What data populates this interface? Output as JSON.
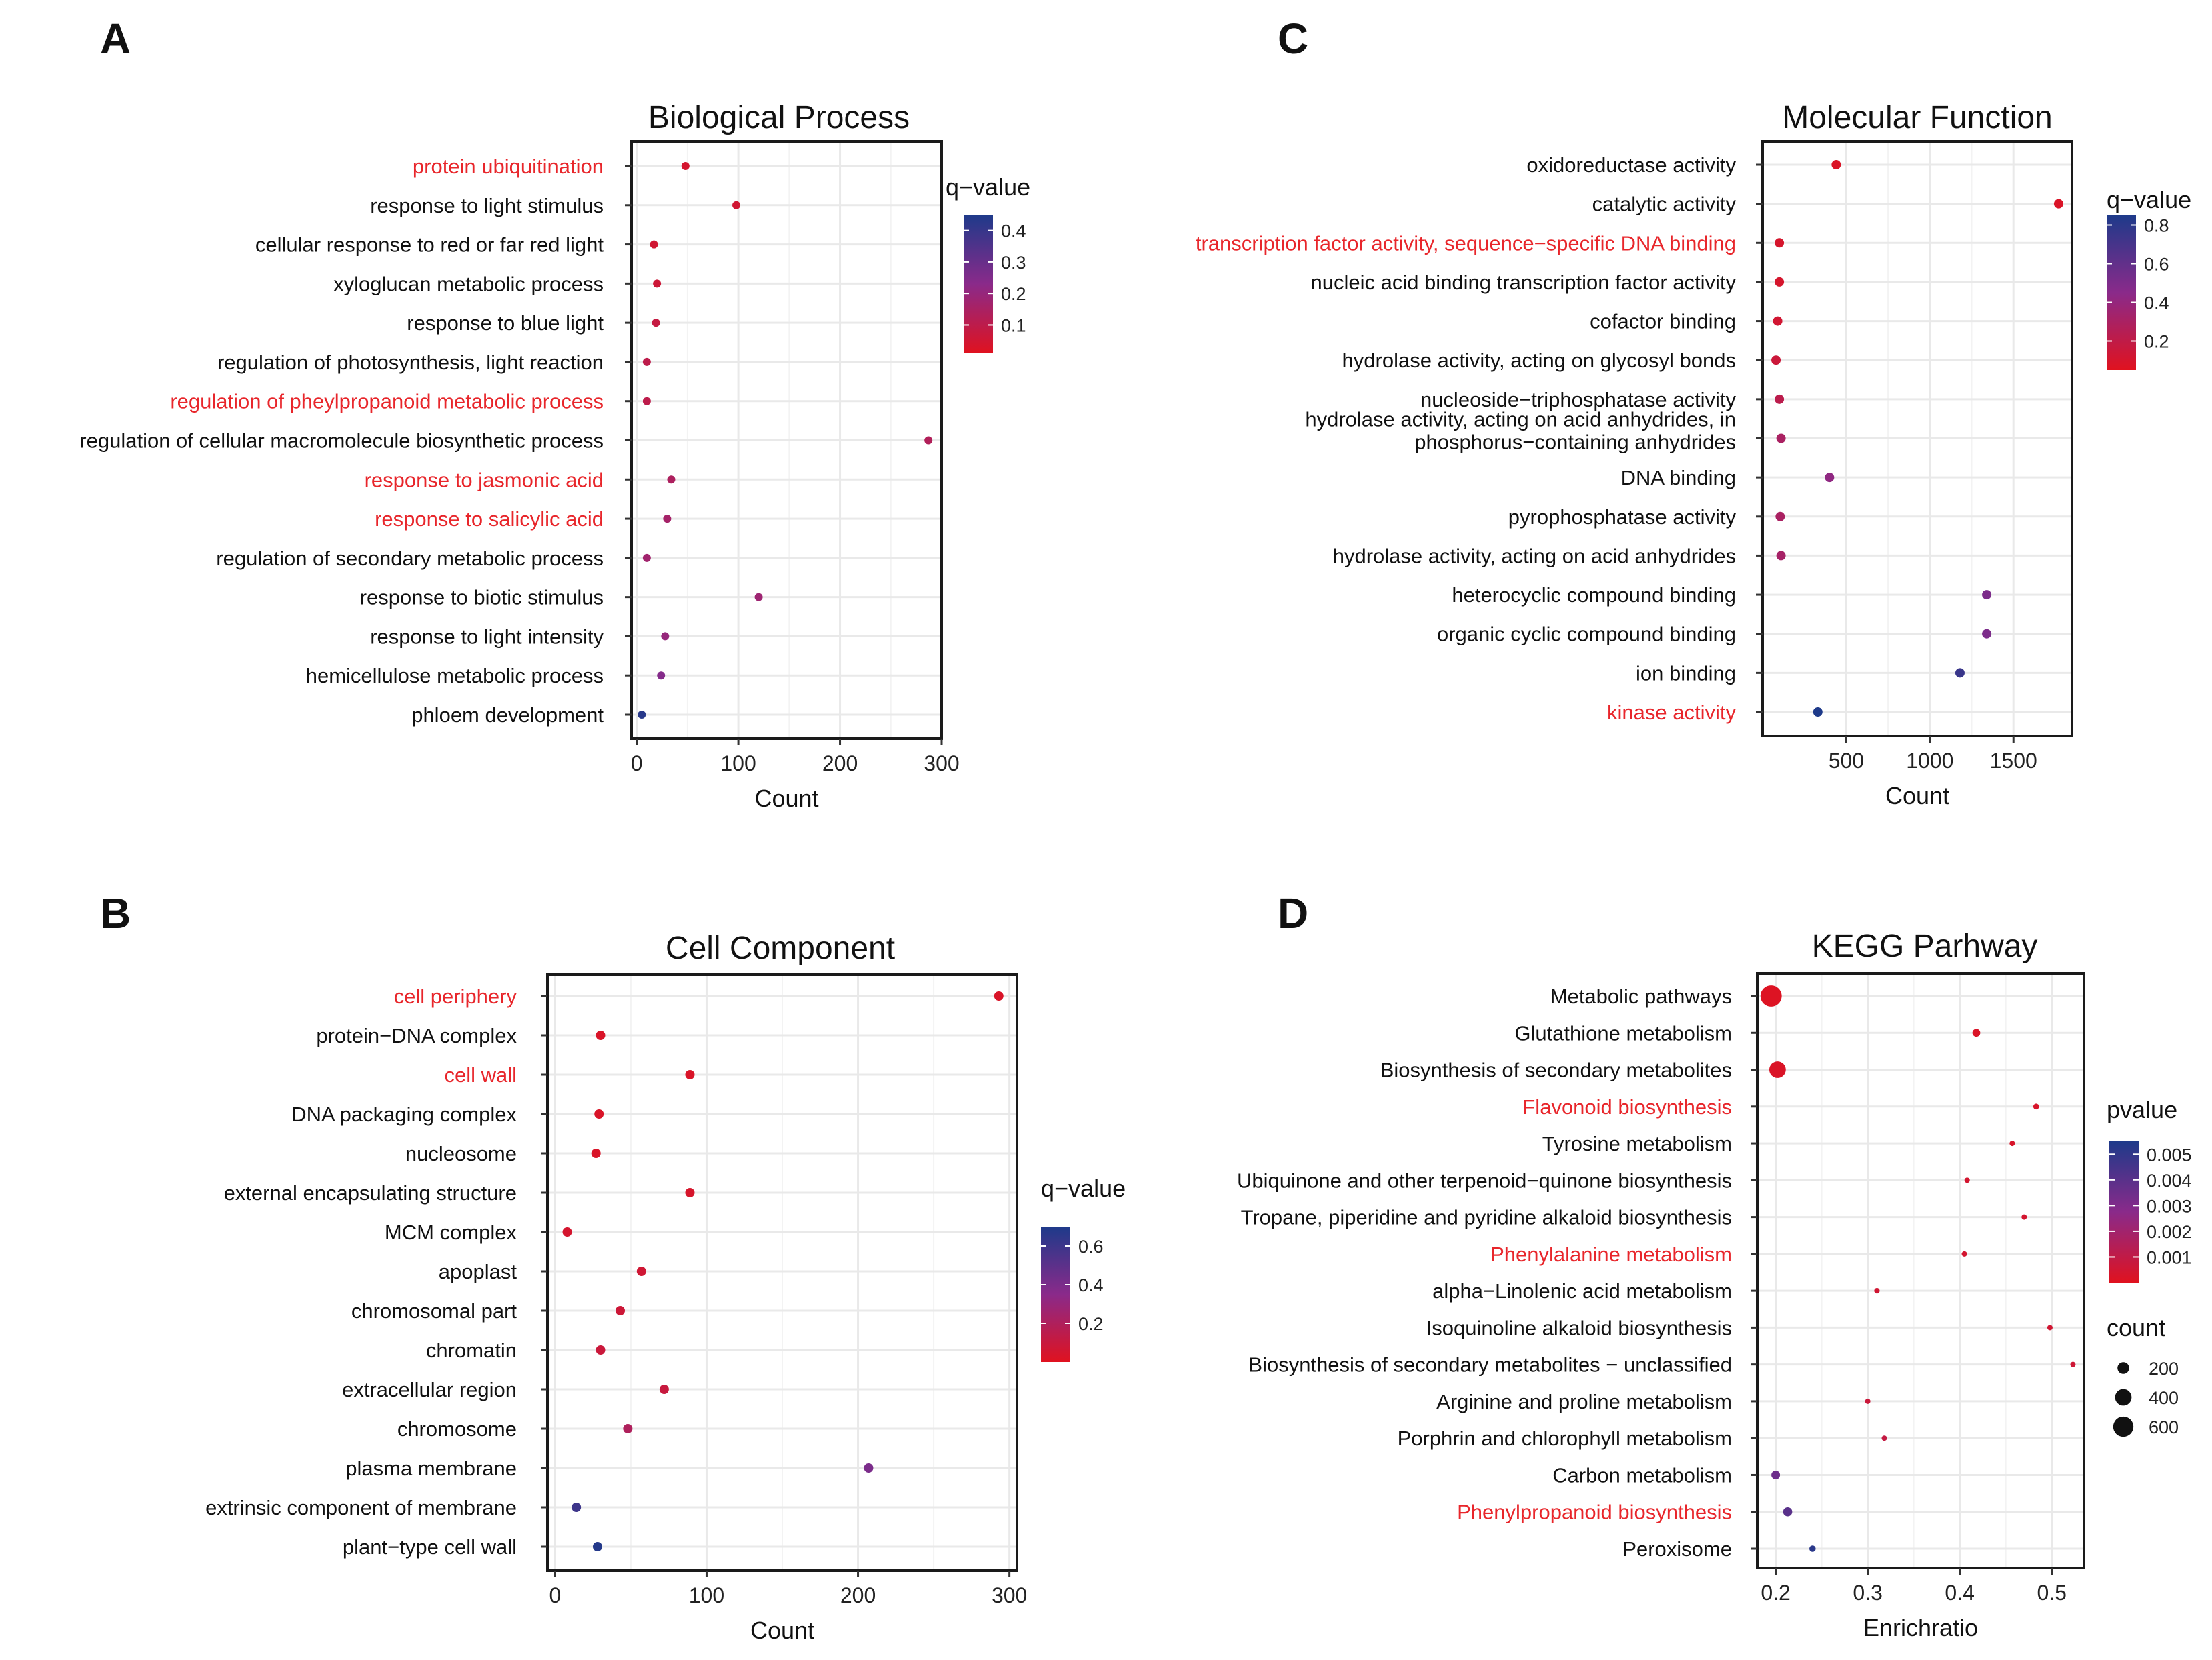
{
  "colors": {
    "high": "#1e3a8a",
    "mid": "#8a2a8a",
    "low": "#e0121f",
    "highlight": "#e8262b",
    "frame": "#1a1a1a",
    "grid": "#e9e9e9"
  },
  "chart_data": [
    {
      "id": "A",
      "panel": "A",
      "type": "scatter",
      "title": "Biological Process",
      "xlabel": "Count",
      "xlim": [
        -5,
        300
      ],
      "xticks": [
        0,
        100,
        200,
        300
      ],
      "legend": {
        "title": "q−value",
        "ticks": [
          "0.4",
          "0.3",
          "0.2",
          "0.1"
        ],
        "range": [
          0.01,
          0.45
        ],
        "placement": "right"
      },
      "categories": [
        {
          "label": "protein ubiquitination",
          "value": 48,
          "color_value": 0.04,
          "highlight": true
        },
        {
          "label": "response to light stimulus",
          "value": 98,
          "color_value": 0.05,
          "highlight": false
        },
        {
          "label": "cellular response to red or far red light",
          "value": 17,
          "color_value": 0.05,
          "highlight": false
        },
        {
          "label": "xyloglucan metabolic process",
          "value": 20,
          "color_value": 0.06,
          "highlight": false
        },
        {
          "label": "response to blue light",
          "value": 19,
          "color_value": 0.08,
          "highlight": false
        },
        {
          "label": "regulation of photosynthesis, light reaction",
          "value": 10,
          "color_value": 0.1,
          "highlight": false
        },
        {
          "label": "regulation of pheylpropanoid metabolic process",
          "value": 10,
          "color_value": 0.1,
          "highlight": true
        },
        {
          "label": "regulation of cellular macromolecule biosynthetic process",
          "value": 287,
          "color_value": 0.13,
          "highlight": false
        },
        {
          "label": "response to jasmonic acid",
          "value": 34,
          "color_value": 0.14,
          "highlight": true
        },
        {
          "label": "response to salicylic acid",
          "value": 30,
          "color_value": 0.16,
          "highlight": true
        },
        {
          "label": "regulation of secondary metabolic process",
          "value": 10,
          "color_value": 0.17,
          "highlight": false
        },
        {
          "label": "response to biotic stimulus",
          "value": 120,
          "color_value": 0.18,
          "highlight": false
        },
        {
          "label": "response to light intensity",
          "value": 28,
          "color_value": 0.2,
          "highlight": false
        },
        {
          "label": "hemicellulose metabolic process",
          "value": 24,
          "color_value": 0.24,
          "highlight": false
        },
        {
          "label": "phloem development",
          "value": 5,
          "color_value": 0.43,
          "highlight": false
        }
      ]
    },
    {
      "id": "B",
      "panel": "B",
      "type": "scatter",
      "title": "Cell Component",
      "xlabel": "Count",
      "xlim": [
        -5,
        305
      ],
      "xticks": [
        0,
        100,
        200,
        300
      ],
      "legend": {
        "title": "q−value",
        "ticks": [
          "0.6",
          "0.4",
          "0.2"
        ],
        "range": [
          0.0,
          0.7
        ],
        "placement": "right"
      },
      "categories": [
        {
          "label": "cell periphery",
          "value": 293,
          "color_value": 0.03,
          "highlight": true
        },
        {
          "label": "protein−DNA complex",
          "value": 30,
          "color_value": 0.03,
          "highlight": false
        },
        {
          "label": "cell wall",
          "value": 89,
          "color_value": 0.03,
          "highlight": true
        },
        {
          "label": "DNA packaging complex",
          "value": 29,
          "color_value": 0.03,
          "highlight": false
        },
        {
          "label": "nucleosome",
          "value": 27,
          "color_value": 0.03,
          "highlight": false
        },
        {
          "label": "external encapsulating structure",
          "value": 89,
          "color_value": 0.04,
          "highlight": false
        },
        {
          "label": "MCM complex",
          "value": 8,
          "color_value": 0.05,
          "highlight": false
        },
        {
          "label": "apoplast",
          "value": 57,
          "color_value": 0.07,
          "highlight": false
        },
        {
          "label": "chromosomal part",
          "value": 43,
          "color_value": 0.08,
          "highlight": false
        },
        {
          "label": "chromatin",
          "value": 30,
          "color_value": 0.09,
          "highlight": false
        },
        {
          "label": "extracellular region",
          "value": 72,
          "color_value": 0.1,
          "highlight": false
        },
        {
          "label": "chromosome",
          "value": 48,
          "color_value": 0.2,
          "highlight": false
        },
        {
          "label": "plasma membrane",
          "value": 207,
          "color_value": 0.4,
          "highlight": false
        },
        {
          "label": "extrinsic component of membrane",
          "value": 14,
          "color_value": 0.6,
          "highlight": false
        },
        {
          "label": "plant−type cell wall",
          "value": 28,
          "color_value": 0.68,
          "highlight": false
        }
      ]
    },
    {
      "id": "C",
      "panel": "C",
      "type": "scatter",
      "title": "Molecular Function",
      "xlabel": "Count",
      "xlim": [
        0,
        1850
      ],
      "xticks": [
        500,
        1000,
        1500
      ],
      "legend": {
        "title": "q−value",
        "ticks": [
          "0.8",
          "0.6",
          "0.4",
          "0.2"
        ],
        "range": [
          0.05,
          0.85
        ],
        "placement": "right"
      },
      "categories": [
        {
          "label": "oxidoreductase activity",
          "value": 440,
          "color_value": 0.08,
          "highlight": false
        },
        {
          "label": "catalytic activity",
          "value": 1770,
          "color_value": 0.08,
          "highlight": false
        },
        {
          "label": "transcription factor activity, sequence−specific DNA binding",
          "value": 100,
          "color_value": 0.1,
          "highlight": true
        },
        {
          "label": "nucleic acid binding transcription factor activity",
          "value": 100,
          "color_value": 0.1,
          "highlight": false
        },
        {
          "label": "cofactor binding",
          "value": 90,
          "color_value": 0.12,
          "highlight": false
        },
        {
          "label": "hydrolase activity, acting on glycosyl bonds",
          "value": 80,
          "color_value": 0.15,
          "highlight": false
        },
        {
          "label": "nucleoside−triphosphatase activity",
          "value": 100,
          "color_value": 0.22,
          "highlight": false
        },
        {
          "label": "hydrolase activity, acting on acid anhydrides, in phosphorus−containing anhydrides",
          "value": 110,
          "color_value": 0.3,
          "highlight": false
        },
        {
          "label": "DNA binding",
          "value": 400,
          "color_value": 0.42,
          "highlight": false
        },
        {
          "label": "pyrophosphatase activity",
          "value": 105,
          "color_value": 0.3,
          "highlight": false
        },
        {
          "label": "hydrolase activity, acting on acid anhydrides",
          "value": 110,
          "color_value": 0.32,
          "highlight": false
        },
        {
          "label": "heterocyclic compound binding",
          "value": 1340,
          "color_value": 0.5,
          "highlight": false
        },
        {
          "label": "organic cyclic compound binding",
          "value": 1340,
          "color_value": 0.5,
          "highlight": false
        },
        {
          "label": "ion binding",
          "value": 1180,
          "color_value": 0.75,
          "highlight": false
        },
        {
          "label": "kinase activity",
          "value": 330,
          "color_value": 0.85,
          "highlight": true
        }
      ]
    },
    {
      "id": "D",
      "panel": "D",
      "type": "scatter",
      "title": "KEGG Parhway",
      "xlabel": "Enrichratio",
      "xlim": [
        0.18,
        0.535
      ],
      "xticks": [
        0.2,
        0.3,
        0.4,
        0.5
      ],
      "legend": {
        "title": "pvalue",
        "ticks": [
          "0.005",
          "0.004",
          "0.003",
          "0.002",
          "0.001"
        ],
        "range": [
          0.0,
          0.0055
        ],
        "placement": "right",
        "size_title": "count",
        "size_ticks": [
          200,
          400,
          600
        ]
      },
      "categories": [
        {
          "label": "Metabolic pathways",
          "value": 0.195,
          "color_value": 0.0001,
          "count": 660,
          "highlight": false
        },
        {
          "label": "Glutathione metabolism",
          "value": 0.418,
          "color_value": 0.0002,
          "count": 90,
          "highlight": false
        },
        {
          "label": "Biosynthesis of secondary metabolites",
          "value": 0.202,
          "color_value": 0.0002,
          "count": 400,
          "highlight": false
        },
        {
          "label": "Flavonoid biosynthesis",
          "value": 0.483,
          "color_value": 0.0003,
          "count": 50,
          "highlight": true
        },
        {
          "label": "Tyrosine metabolism",
          "value": 0.457,
          "color_value": 0.0003,
          "count": 40,
          "highlight": false
        },
        {
          "label": "Ubiquinone and other terpenoid−quinone biosynthesis",
          "value": 0.408,
          "color_value": 0.0004,
          "count": 35,
          "highlight": false
        },
        {
          "label": "Tropane, piperidine and pyridine alkaloid biosynthesis",
          "value": 0.47,
          "color_value": 0.0004,
          "count": 25,
          "highlight": false
        },
        {
          "label": "Phenylalanine metabolism",
          "value": 0.405,
          "color_value": 0.0004,
          "count": 35,
          "highlight": true
        },
        {
          "label": "alpha−Linolenic acid metabolism",
          "value": 0.31,
          "color_value": 0.0005,
          "count": 45,
          "highlight": false
        },
        {
          "label": "Isoquinoline alkaloid biosynthesis",
          "value": 0.498,
          "color_value": 0.0005,
          "count": 20,
          "highlight": false
        },
        {
          "label": "Biosynthesis of secondary metabolites − unclassified",
          "value": 0.523,
          "color_value": 0.0006,
          "count": 12,
          "highlight": false
        },
        {
          "label": "Arginine and proline metabolism",
          "value": 0.3,
          "color_value": 0.0007,
          "count": 40,
          "highlight": false
        },
        {
          "label": "Porphrin and chlorophyll metabolism",
          "value": 0.318,
          "color_value": 0.0009,
          "count": 35,
          "highlight": false
        },
        {
          "label": "Carbon metabolism",
          "value": 0.2,
          "color_value": 0.0035,
          "count": 110,
          "highlight": false
        },
        {
          "label": "Phenylpropanoid biosynthesis",
          "value": 0.213,
          "color_value": 0.004,
          "count": 120,
          "highlight": true
        },
        {
          "label": "Peroxisome",
          "value": 0.24,
          "color_value": 0.0052,
          "count": 60,
          "highlight": false
        }
      ]
    }
  ]
}
